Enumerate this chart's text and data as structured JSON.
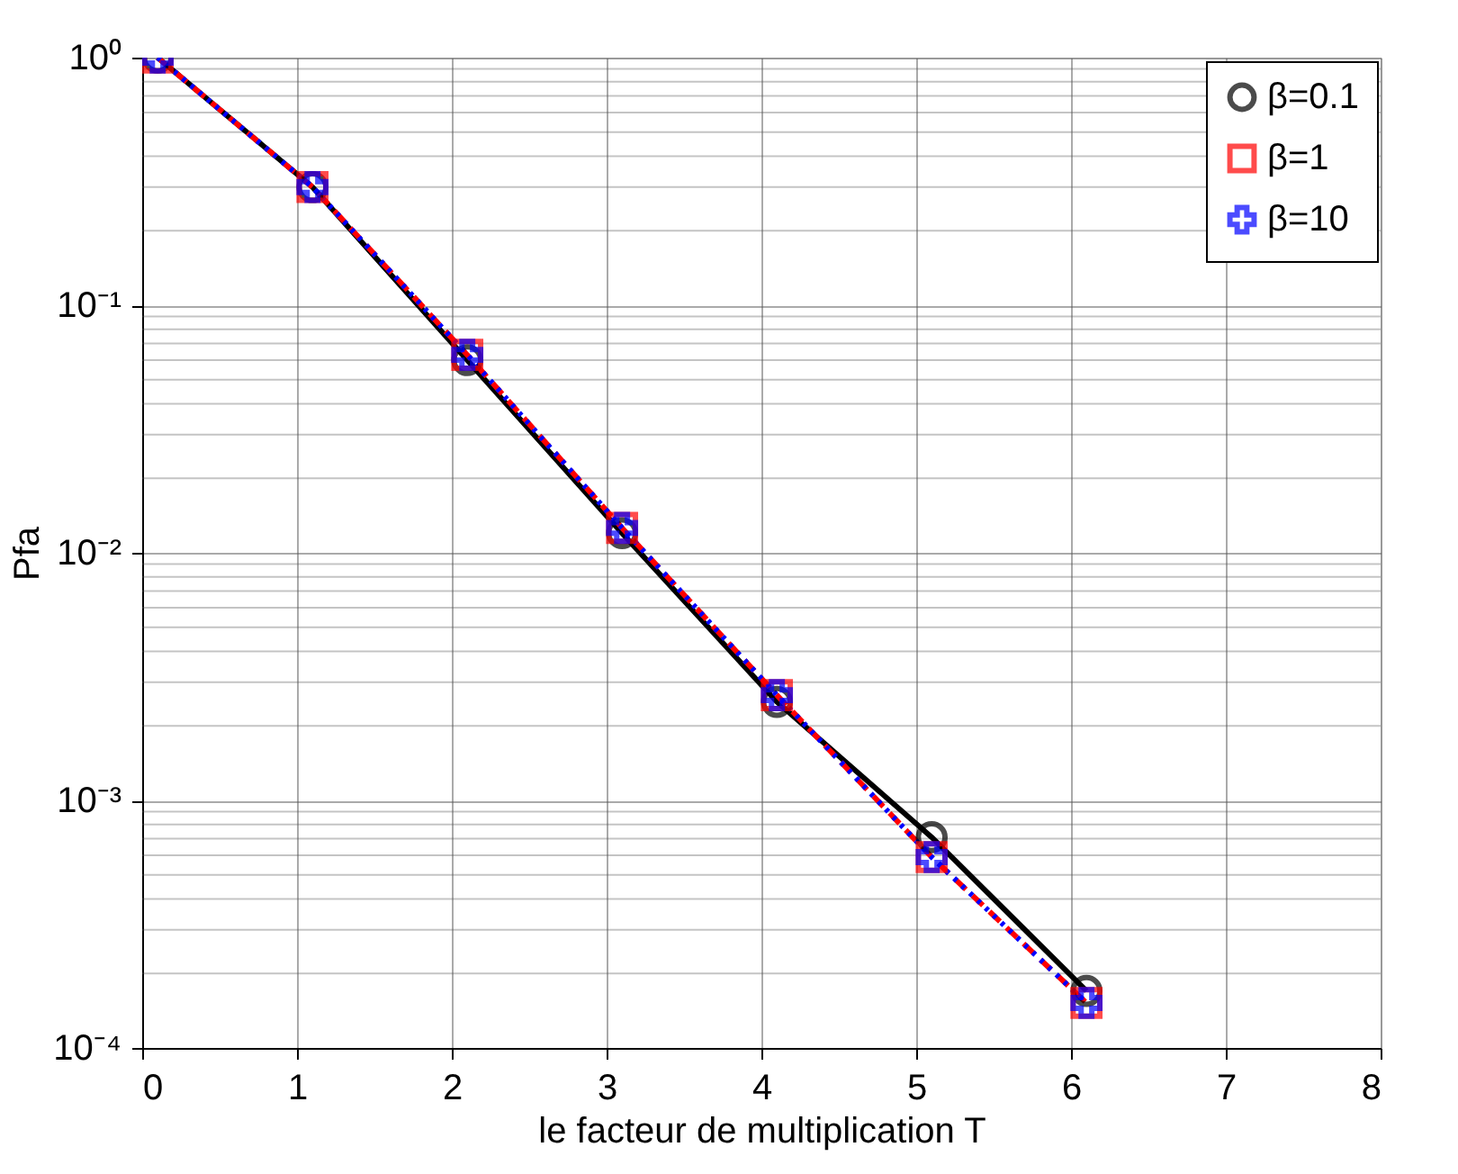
{
  "chart_data": {
    "type": "line",
    "xlabel": "le facteur de multiplication T",
    "ylabel": "Pfa",
    "x": [
      0.1,
      1.1,
      2.1,
      3.1,
      4.1,
      5.1,
      6.1
    ],
    "series": [
      {
        "name": "β=0.1",
        "color": "#000000",
        "marker": "circle",
        "line_style": "solid",
        "values": [
          1.0,
          0.3,
          0.06,
          0.012,
          0.0025,
          0.00071,
          0.00017
        ]
      },
      {
        "name": "β=1",
        "color": "#ff0000",
        "marker": "square",
        "line_style": "dashed",
        "values": [
          1.0,
          0.3,
          0.063,
          0.0126,
          0.00266,
          0.00059,
          0.000152
        ]
      },
      {
        "name": "β=10",
        "color": "#0000ff",
        "marker": "cross",
        "line_style": "dotted",
        "values": [
          1.0,
          0.3,
          0.063,
          0.0126,
          0.00266,
          0.00059,
          0.000152
        ]
      }
    ],
    "log": "y",
    "grid": true,
    "legend": "top right",
    "xlim": [
      0,
      8
    ],
    "xticks": [
      0,
      1,
      2,
      3,
      4,
      5,
      6,
      7,
      8
    ],
    "ylim": [
      0.0001,
      1
    ],
    "yticks": [
      {
        "value": 0.0001,
        "label": "10⁻⁴"
      },
      {
        "value": 0.001,
        "label": "10⁻³"
      },
      {
        "value": 0.01,
        "label": "10⁻²"
      },
      {
        "value": 0.1,
        "label": "10⁻¹"
      },
      {
        "value": 1,
        "label": "10⁰"
      }
    ]
  }
}
